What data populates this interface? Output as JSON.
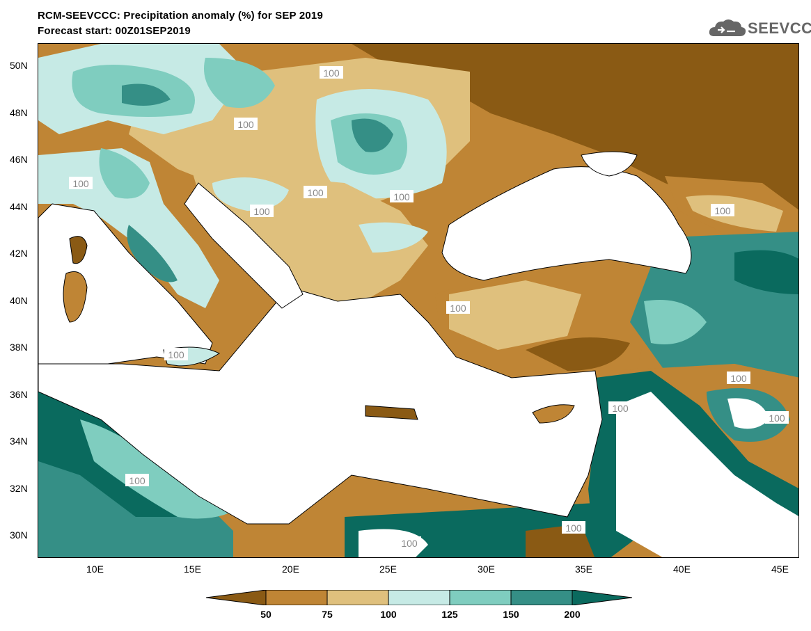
{
  "header": {
    "title_line1": "RCM-SEEVCCC: Precipitation anomaly (%) for SEP 2019",
    "title_line2": "Forecast start: 00Z01SEP2019",
    "logo_text": "SEEVCCC"
  },
  "map": {
    "lat_labels": [
      "50N",
      "48N",
      "46N",
      "44N",
      "42N",
      "40N",
      "38N",
      "36N",
      "34N",
      "32N",
      "30N"
    ],
    "lon_labels": [
      "10E",
      "15E",
      "20E",
      "25E",
      "30E",
      "35E",
      "40E",
      "45E"
    ],
    "contour_label": "100",
    "contour_labels_count": 14
  },
  "colorbar": {
    "ticks": [
      "50",
      "75",
      "100",
      "125",
      "150",
      "200"
    ],
    "colors": {
      "below_50": "#8a5a14",
      "50_75": "#bf8535",
      "75_100": "#dfc07d",
      "100_125": "#c6eae5",
      "125_150": "#7fcdbf",
      "150_200": "#358f86",
      "above_200": "#0a6a5e"
    }
  },
  "colors": {
    "sea": "#ffffff",
    "border": "#000000",
    "contour100": "#a7a7a7",
    "logo": "#666666"
  }
}
